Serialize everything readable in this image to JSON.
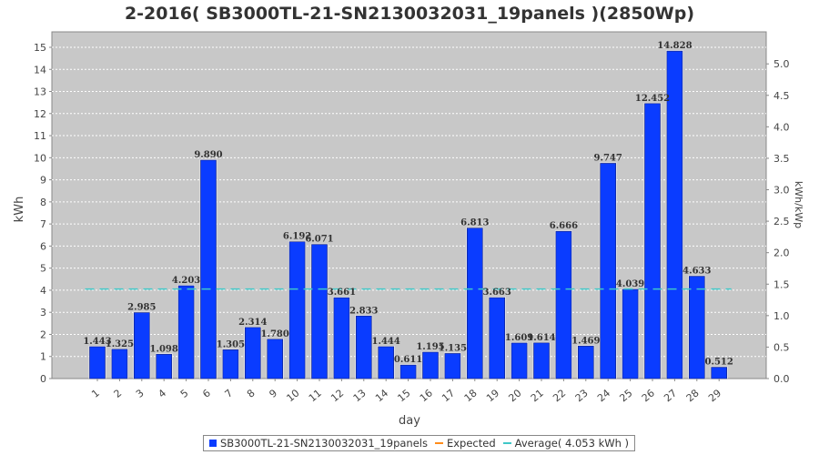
{
  "chart_data": {
    "type": "bar",
    "title": "2-2016( SB3000TL-21-SN2130032031_19panels )(2850Wp)",
    "xlabel": "day",
    "ylabel": "kWh",
    "ylabel_right": "kWh/kWp",
    "ylim": [
      0,
      15.7
    ],
    "yticks": [
      0,
      1,
      2,
      3,
      4,
      5,
      6,
      7,
      8,
      9,
      10,
      11,
      12,
      13,
      14,
      15
    ],
    "yticks_right": [
      "0.0",
      "0.5",
      "1.0",
      "1.5",
      "2.0",
      "2.5",
      "3.0",
      "3.5",
      "4.0",
      "4.5",
      "5.0"
    ],
    "categories": [
      "1",
      "2",
      "3",
      "4",
      "5",
      "6",
      "7",
      "8",
      "9",
      "10",
      "11",
      "12",
      "13",
      "14",
      "15",
      "16",
      "17",
      "18",
      "19",
      "20",
      "21",
      "22",
      "23",
      "24",
      "25",
      "26",
      "27",
      "28",
      "29"
    ],
    "series": [
      {
        "name": "SB3000TL-21-SN2130032031_19panels",
        "values": [
          1.443,
          1.325,
          2.985,
          1.098,
          4.203,
          9.89,
          1.305,
          2.314,
          1.78,
          6.192,
          6.071,
          3.661,
          2.833,
          1.444,
          0.611,
          1.195,
          1.135,
          6.813,
          3.663,
          1.609,
          1.614,
          6.666,
          1.469,
          9.747,
          4.039,
          12.452,
          14.828,
          4.633,
          0.512
        ],
        "labels": [
          "1.443",
          "1.325",
          "2.985",
          "1.098",
          "4.203",
          "9.890",
          "1.305",
          "2.314",
          "1.780",
          "6.192",
          "6.071",
          "3.661",
          "2.833",
          "1.444",
          "0.611",
          "1.195",
          "1.135",
          "6.813",
          "3.663",
          "1.609",
          "1.614",
          "6.666",
          "1.469",
          "9.747",
          "4.039",
          "12.452",
          "14.828",
          "4.633",
          "0.512"
        ],
        "color": "#0a3cff"
      }
    ],
    "average": 4.053,
    "legend": {
      "position": "bottom",
      "items": [
        {
          "label": "SB3000TL-21-SN2130032031_19panels",
          "color": "#0a3cff",
          "kind": "box"
        },
        {
          "label": "Expected",
          "color": "#ff8c1a",
          "kind": "line"
        },
        {
          "label": "Average( 4.053 kWh  )",
          "color": "#40c8c8",
          "kind": "line"
        }
      ]
    },
    "grid": true,
    "colors": {
      "plot_background": "#c8c8c8",
      "bar": "#0a3cff",
      "average_line": "#40c8c8",
      "expected_line": "#ff8c1a"
    }
  }
}
